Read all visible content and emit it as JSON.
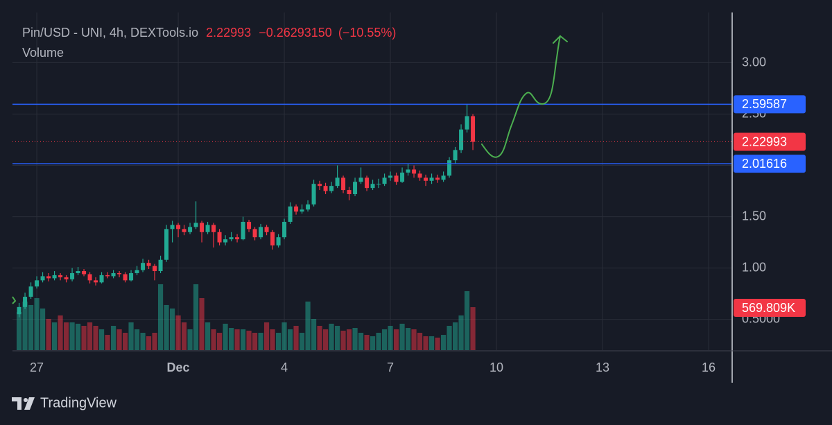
{
  "chart_data": {
    "type": "candlestick",
    "title": "Pin/USD - UNI, 4h, DEXTools.io",
    "last_price": 2.22993,
    "change": {
      "value": -0.2629315,
      "label": "−0.26293150"
    },
    "change_pct": {
      "value": -10.55,
      "label": "(−10.55%)"
    },
    "indicator": "Volume",
    "brand": "TradingView",
    "up_color": "#22ab94",
    "down_color": "#f23645",
    "x": [
      -12,
      -8,
      -4,
      0,
      4,
      8,
      12,
      16,
      20,
      24,
      28,
      32,
      36,
      40,
      44,
      48,
      52,
      56,
      60,
      64,
      68,
      72,
      76,
      80,
      84,
      88,
      92,
      96,
      100,
      104,
      108,
      112,
      116,
      120,
      124,
      128,
      132,
      136,
      140,
      144,
      148,
      152,
      156,
      160,
      164,
      168,
      172,
      176,
      180,
      184,
      188,
      192,
      196,
      200,
      204,
      208,
      212,
      216,
      220,
      224,
      228,
      232,
      236,
      240,
      244,
      248,
      252,
      256,
      260,
      264,
      268,
      272,
      276,
      280,
      284,
      288,
      292,
      296
    ],
    "open": [
      0.55,
      0.62,
      0.72,
      0.82,
      0.88,
      0.92,
      0.9,
      0.93,
      0.91,
      0.89,
      0.95,
      0.97,
      0.94,
      0.88,
      0.86,
      0.93,
      0.92,
      0.95,
      0.94,
      0.88,
      0.95,
      0.98,
      1.05,
      1.02,
      0.97,
      1.08,
      1.38,
      1.42,
      1.38,
      1.35,
      1.4,
      1.44,
      1.35,
      1.42,
      1.35,
      1.25,
      1.28,
      1.3,
      1.28,
      1.45,
      1.38,
      1.3,
      1.4,
      1.35,
      1.22,
      1.3,
      1.45,
      1.6,
      1.55,
      1.57,
      1.62,
      1.82,
      1.8,
      1.75,
      1.8,
      1.88,
      1.76,
      1.72,
      1.84,
      1.88,
      1.78,
      1.82,
      1.82,
      1.88,
      1.9,
      1.84,
      1.93,
      1.96,
      1.92,
      1.88,
      1.85,
      1.88,
      1.86,
      1.9,
      2.05,
      2.15,
      2.35,
      2.48
    ],
    "high": [
      0.66,
      0.76,
      0.86,
      0.92,
      0.96,
      0.95,
      0.97,
      0.95,
      0.93,
      1.0,
      1.01,
      0.99,
      0.96,
      0.91,
      0.96,
      0.96,
      0.98,
      0.97,
      0.96,
      0.98,
      1.02,
      1.09,
      1.08,
      1.04,
      1.12,
      1.42,
      1.46,
      1.44,
      1.42,
      1.44,
      1.65,
      1.46,
      1.45,
      1.44,
      1.38,
      1.32,
      1.35,
      1.33,
      1.5,
      1.47,
      1.4,
      1.43,
      1.42,
      1.37,
      1.33,
      1.48,
      1.64,
      1.62,
      1.62,
      1.66,
      1.86,
      1.85,
      1.83,
      1.84,
      2.0,
      1.9,
      1.79,
      1.88,
      1.98,
      1.9,
      1.86,
      1.87,
      1.92,
      1.94,
      1.93,
      1.98,
      2.02,
      2.0,
      1.95,
      1.91,
      1.92,
      1.91,
      1.94,
      2.08,
      2.18,
      2.4,
      2.59587,
      2.5
    ],
    "low": [
      0.52,
      0.6,
      0.7,
      0.8,
      0.86,
      0.87,
      0.88,
      0.88,
      0.86,
      0.87,
      0.93,
      0.92,
      0.85,
      0.83,
      0.85,
      0.9,
      0.9,
      0.91,
      0.86,
      0.87,
      0.93,
      0.96,
      0.99,
      0.88,
      0.95,
      1.06,
      1.25,
      1.3,
      1.32,
      1.33,
      1.38,
      1.25,
      1.33,
      1.2,
      1.22,
      1.22,
      1.26,
      1.25,
      1.27,
      1.35,
      1.27,
      1.28,
      1.32,
      1.18,
      1.2,
      1.28,
      1.43,
      1.52,
      1.53,
      1.55,
      1.6,
      1.76,
      1.72,
      1.73,
      1.78,
      1.73,
      1.66,
      1.7,
      1.82,
      1.75,
      1.76,
      1.78,
      1.8,
      1.85,
      1.81,
      1.83,
      1.9,
      1.88,
      1.85,
      1.8,
      1.82,
      1.83,
      1.84,
      1.88,
      2.02,
      2.12,
      2.32,
      2.15
    ],
    "close": [
      0.62,
      0.72,
      0.82,
      0.88,
      0.92,
      0.9,
      0.93,
      0.91,
      0.89,
      0.95,
      0.97,
      0.94,
      0.88,
      0.86,
      0.93,
      0.92,
      0.95,
      0.94,
      0.88,
      0.95,
      0.98,
      1.05,
      1.02,
      0.97,
      1.08,
      1.38,
      1.42,
      1.38,
      1.35,
      1.4,
      1.44,
      1.35,
      1.42,
      1.35,
      1.25,
      1.28,
      1.3,
      1.28,
      1.45,
      1.38,
      1.3,
      1.4,
      1.35,
      1.22,
      1.3,
      1.45,
      1.6,
      1.55,
      1.57,
      1.62,
      1.82,
      1.8,
      1.75,
      1.8,
      1.88,
      1.76,
      1.72,
      1.84,
      1.88,
      1.78,
      1.82,
      1.82,
      1.88,
      1.9,
      1.84,
      1.93,
      1.96,
      1.92,
      1.88,
      1.85,
      1.88,
      1.86,
      1.9,
      2.05,
      2.15,
      2.35,
      2.48,
      2.22993
    ],
    "volume": [
      506000,
      644000,
      598000,
      690000,
      552000,
      414000,
      368000,
      460000,
      368000,
      368000,
      350000,
      322000,
      368000,
      322000,
      276000,
      202000,
      322000,
      276000,
      230000,
      368000,
      276000,
      230000,
      184000,
      230000,
      874000,
      598000,
      552000,
      460000,
      368000,
      276000,
      874000,
      690000,
      368000,
      276000,
      230000,
      350000,
      294000,
      276000,
      276000,
      258000,
      230000,
      230000,
      368000,
      276000,
      230000,
      368000,
      276000,
      322000,
      230000,
      644000,
      414000,
      322000,
      276000,
      350000,
      322000,
      258000,
      276000,
      294000,
      230000,
      202000,
      184000,
      230000,
      276000,
      322000,
      276000,
      350000,
      294000,
      276000,
      230000,
      184000,
      184000,
      166000,
      202000,
      322000,
      368000,
      460000,
      782000,
      569809
    ],
    "volume_label": "569.809K",
    "volume_lim": [
      0,
      3200000
    ],
    "xlim": [
      -16.5,
      471.5
    ],
    "xticks": [
      {
        "value": 0,
        "label": "27"
      },
      {
        "value": 96,
        "label": "Dec"
      },
      {
        "value": 168,
        "label": "4"
      },
      {
        "value": 240,
        "label": "7"
      },
      {
        "value": 312,
        "label": "10"
      },
      {
        "value": 384,
        "label": "13"
      },
      {
        "value": 456,
        "label": "16"
      }
    ],
    "ylim": [
      0.2,
      3.49
    ],
    "yticks": [
      {
        "value": 3,
        "label": "3.00"
      },
      {
        "value": 2.5,
        "label": "2.50"
      },
      {
        "value": 2,
        "label": "2.00"
      },
      {
        "value": 1.5,
        "label": "1.50"
      },
      {
        "value": 1,
        "label": "1.00"
      },
      {
        "value": 0.5,
        "label": "0.5000"
      }
    ],
    "grid": true,
    "price_lines": [
      {
        "value": 2.59587,
        "color": "#2962ff"
      },
      {
        "value": 2.01616,
        "color": "#2962ff"
      }
    ]
  }
}
